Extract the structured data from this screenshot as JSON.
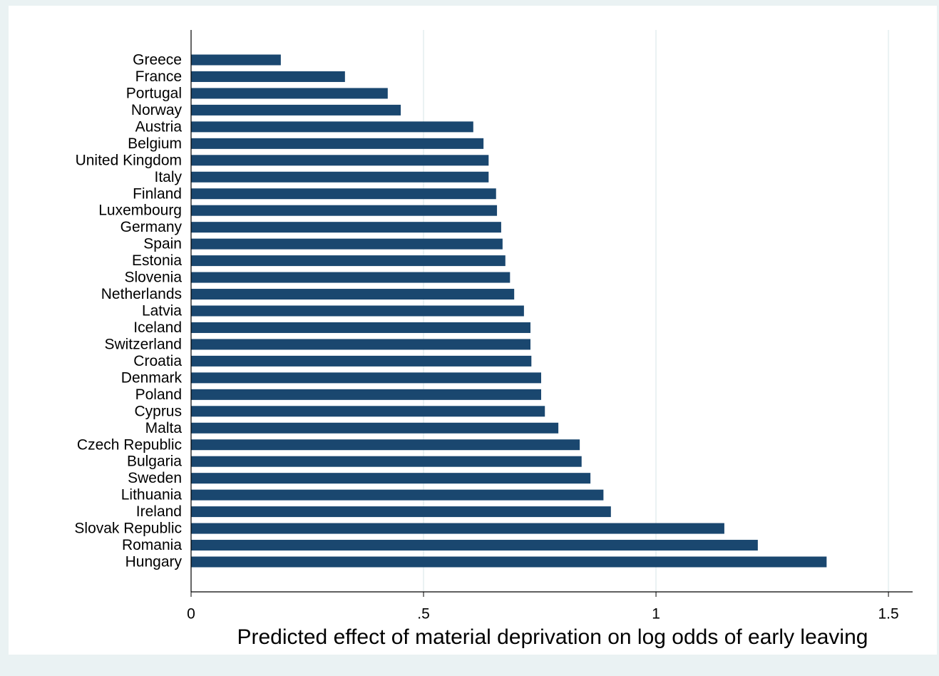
{
  "chart_data": {
    "type": "barh",
    "x_label": "Predicted effect of material deprivation on log odds of early leaving",
    "categories": [
      "Greece",
      "France",
      "Portugal",
      "Norway",
      "Austria",
      "Belgium",
      "United Kingdom",
      "Italy",
      "Finland",
      "Luxembourg",
      "Germany",
      "Spain",
      "Estonia",
      "Slovenia",
      "Netherlands",
      "Latvia",
      "Iceland",
      "Switzerland",
      "Croatia",
      "Denmark",
      "Poland",
      "Cyprus",
      "Malta",
      "Czech Republic",
      "Bulgaria",
      "Sweden",
      "Lithuania",
      "Ireland",
      "Slovak Republic",
      "Romania",
      "Hungary"
    ],
    "values": [
      0.193,
      0.331,
      0.423,
      0.451,
      0.607,
      0.629,
      0.64,
      0.64,
      0.656,
      0.658,
      0.667,
      0.67,
      0.676,
      0.686,
      0.695,
      0.716,
      0.73,
      0.73,
      0.732,
      0.753,
      0.753,
      0.761,
      0.79,
      0.836,
      0.84,
      0.859,
      0.887,
      0.903,
      1.147,
      1.219,
      1.367
    ],
    "color": "#1a476f",
    "xlim": [
      0,
      1.552
    ],
    "xticks": [
      0,
      {
        "value": 0.5,
        "label": ".5"
      },
      1,
      1.5
    ],
    "grid": true
  }
}
